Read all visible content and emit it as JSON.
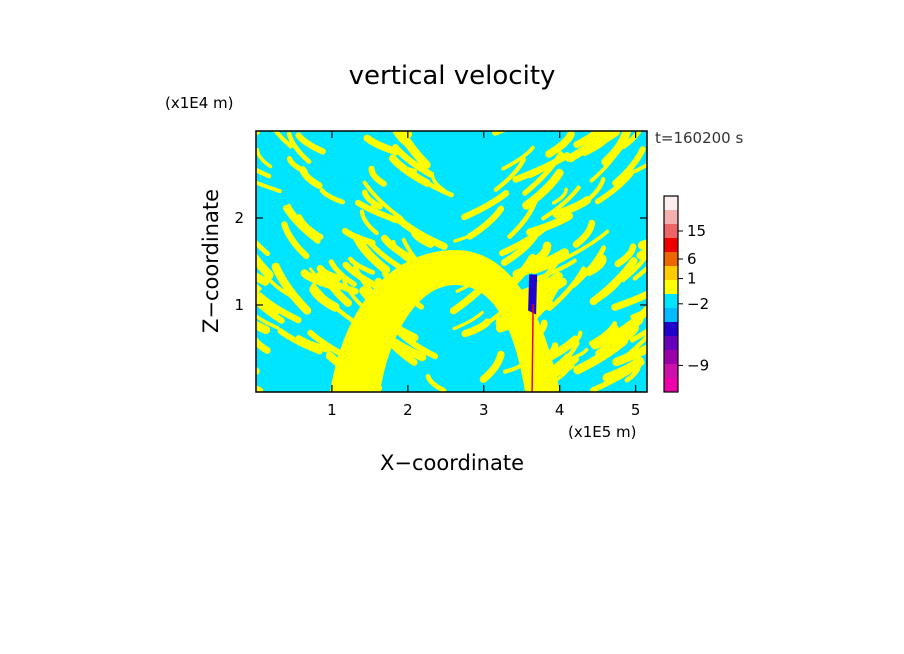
{
  "chart_data": {
    "type": "heatmap",
    "title": "vertical velocity",
    "xlabel": "X−coordinate",
    "ylabel": "Z−coordinate",
    "x_unit": "(x1E5 m)",
    "y_unit": "(x1E4 m)",
    "time_label": "t=160200 s",
    "xlim": [
      0,
      5.15
    ],
    "ylim": [
      0,
      3.0
    ],
    "x_ticks": [
      1,
      2,
      3,
      4,
      5
    ],
    "y_ticks": [
      1,
      2
    ],
    "colorbar": {
      "levels": [
        {
          "color": "#ee00aa"
        },
        {
          "color": "#cc11aa"
        },
        {
          "color": "#9900aa"
        },
        {
          "color": "#6600bb"
        },
        {
          "color": "#2200cc"
        },
        {
          "color": "#00bbff"
        },
        {
          "color": "#00e5ff"
        },
        {
          "color": "#ffff00"
        },
        {
          "color": "#ffcc00"
        },
        {
          "color": "#ee6600"
        },
        {
          "color": "#ee0000"
        },
        {
          "color": "#ee6666"
        },
        {
          "color": "#f4b0b0"
        },
        {
          "color": "#fdeeee"
        }
      ],
      "tick_labels": [
        {
          "text": "15",
          "level": 11.5
        },
        {
          "text": "6",
          "level": 9.5
        },
        {
          "text": "1",
          "level": 8.1
        },
        {
          "text": "−2",
          "level": 6.3
        },
        {
          "text": "−9",
          "level": 1.9
        }
      ]
    },
    "dominant_colors": {
      "upward": "#ffff00",
      "downward": "#00e5ff"
    },
    "anomaly": {
      "x": 3.65,
      "z_top": 1.35,
      "colors": [
        "#2200cc",
        "#ee0000"
      ]
    }
  }
}
